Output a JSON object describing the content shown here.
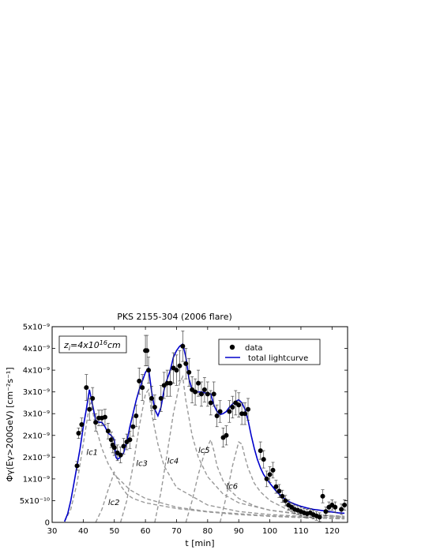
{
  "chart_data": {
    "type": "line",
    "title": "PKS 2155-304  (2006 flare)",
    "xlabel": "t [min]",
    "ylabel": "Φγ(Eγ>200GeV) [cm⁻²s⁻¹]",
    "xlim": [
      30,
      125
    ],
    "ylim": [
      0,
      4.5e-09
    ],
    "xticks": [
      30,
      40,
      50,
      60,
      70,
      80,
      90,
      100,
      110,
      120
    ],
    "yticks": [
      {
        "value": 0,
        "label": "0"
      },
      {
        "value": 5e-10,
        "label": "5x10⁻¹⁰"
      },
      {
        "value": 1e-09,
        "label": "1x10⁻⁹"
      },
      {
        "value": 1.5e-09,
        "label": "2x10⁻⁹"
      },
      {
        "value": 2e-09,
        "label": "2x10⁻⁹"
      },
      {
        "value": 2.5e-09,
        "label": "3x10⁻⁹"
      },
      {
        "value": 3e-09,
        "label": "3x10⁻⁹"
      },
      {
        "value": 3.5e-09,
        "label": "4x10⁻⁹"
      },
      {
        "value": 4e-09,
        "label": "4x10⁻⁹"
      },
      {
        "value": 4.5e-09,
        "label": "5x10⁻⁹"
      }
    ],
    "annotation": "z",
    "annotation_sub": "i",
    "annotation_mid": "=4x10",
    "annotation_sup": "16",
    "annotation_end": "cm",
    "legend": {
      "placement": "top-right",
      "entries": [
        "data",
        "total lightcurve"
      ]
    },
    "colors": {
      "data": "#000000",
      "total": "#0000cc",
      "components": "#999999"
    },
    "series": [
      {
        "name": "data",
        "style": "points-with-errorbars",
        "x": [
          38.0,
          38.5,
          39.5,
          41.0,
          42.0,
          43.0,
          44.0,
          45.0,
          46.0,
          47.0,
          48.0,
          49.0,
          49.5,
          50.0,
          51.0,
          52.0,
          53.0,
          54.0,
          55.0,
          56.0,
          57.0,
          58.0,
          59.0,
          60.0,
          60.5,
          61.0,
          62.0,
          63.0,
          65.0,
          66.0,
          67.0,
          68.0,
          69.0,
          70.0,
          71.0,
          72.0,
          73.0,
          74.0,
          75.0,
          76.0,
          77.0,
          78.0,
          79.0,
          80.0,
          81.0,
          82.0,
          83.0,
          84.0,
          85.0,
          86.0,
          87.0,
          88.0,
          89.0,
          90.0,
          91.0,
          92.0,
          93.0,
          97.0,
          98.0,
          99.0,
          100.0,
          101.0,
          102.0,
          103.0,
          104.0,
          105.0,
          106.0,
          107.0,
          108.0,
          109.0,
          110.0,
          111.0,
          112.0,
          113.0,
          114.0,
          115.0,
          116.0,
          117.0,
          118.0,
          119.0,
          120.0,
          121.0,
          123.0,
          124.0
        ],
        "y": [
          1.3e-09,
          2.05e-09,
          2.25e-09,
          3.1e-09,
          2.6e-09,
          2.85e-09,
          2.3e-09,
          2.4e-09,
          2.4e-09,
          2.42e-09,
          2.1e-09,
          1.9e-09,
          1.78e-09,
          1.72e-09,
          1.6e-09,
          1.55e-09,
          1.75e-09,
          1.85e-09,
          1.9e-09,
          2.2e-09,
          2.45e-09,
          3.25e-09,
          3.1e-09,
          3.95e-09,
          3.95e-09,
          3.5e-09,
          2.85e-09,
          2.65e-09,
          2.85e-09,
          3.15e-09,
          3.2e-09,
          3.2e-09,
          3.55e-09,
          3.5e-09,
          3.6e-09,
          4.05e-09,
          3.65e-09,
          3.45e-09,
          3.05e-09,
          3e-09,
          3.2e-09,
          2.95e-09,
          3.05e-09,
          2.95e-09,
          2.75e-09,
          2.95e-09,
          2.45e-09,
          2.55e-09,
          1.95e-09,
          2e-09,
          2.55e-09,
          2.65e-09,
          2.75e-09,
          2.7e-09,
          2.5e-09,
          2.5e-09,
          2.6e-09,
          1.65e-09,
          1.45e-09,
          1e-09,
          1.1e-09,
          1.2e-09,
          8.2e-10,
          7.2e-10,
          6e-10,
          5e-10,
          4e-10,
          3.5e-10,
          3e-10,
          2.8e-10,
          2.5e-10,
          2.2e-10,
          2e-10,
          2.2e-10,
          1.8e-10,
          1.5e-10,
          1.2e-10,
          6e-10,
          2.5e-10,
          3.5e-10,
          4e-10,
          3.5e-10,
          3e-10,
          4e-10
        ],
        "yerr": [
          1e-10,
          1.2e-10,
          1.5e-10,
          3e-10,
          2.5e-10,
          2.5e-10,
          2e-10,
          1.8e-10,
          1.8e-10,
          1.8e-10,
          1.8e-10,
          1.8e-10,
          1.8e-10,
          1.8e-10,
          1.8e-10,
          1.8e-10,
          1.8e-10,
          1.8e-10,
          2e-10,
          2.2e-10,
          2.5e-10,
          3e-10,
          3e-10,
          3.5e-10,
          3.5e-10,
          3e-10,
          2.8e-10,
          2.8e-10,
          3e-10,
          3e-10,
          3e-10,
          3e-10,
          3.5e-10,
          3.5e-10,
          3.5e-10,
          3.5e-10,
          3.5e-10,
          3.2e-10,
          3e-10,
          3e-10,
          3e-10,
          2.8e-10,
          2.8e-10,
          2.8e-10,
          2.8e-10,
          2.8e-10,
          2.5e-10,
          2.5e-10,
          2.2e-10,
          2.2e-10,
          2.5e-10,
          2.5e-10,
          2.8e-10,
          2.8e-10,
          2.5e-10,
          2.5e-10,
          2.5e-10,
          2e-10,
          2e-10,
          1.8e-10,
          1.8e-10,
          1.8e-10,
          1.5e-10,
          1.5e-10,
          1.4e-10,
          1.2e-10,
          1.2e-10,
          1e-10,
          1e-10,
          1e-10,
          1e-10,
          1e-10,
          1e-10,
          1e-10,
          1e-10,
          1e-10,
          1e-10,
          1.5e-10,
          1e-10,
          1.2e-10,
          1.2e-10,
          1.2e-10,
          1.2e-10,
          1.2e-10
        ]
      },
      {
        "name": "total lightcurve",
        "style": "solid",
        "x": [
          34,
          35,
          36,
          37,
          38,
          39,
          40,
          41,
          42,
          43,
          44,
          45,
          46,
          47,
          48,
          49,
          50,
          50.5,
          51,
          52,
          53,
          54,
          55,
          56,
          57,
          58,
          59,
          60,
          61,
          62,
          63,
          64,
          65,
          66,
          67,
          68,
          69,
          70,
          71,
          72,
          73,
          74,
          75,
          76,
          77,
          78,
          79,
          80,
          81,
          82,
          83,
          84,
          85,
          86,
          87,
          88,
          89,
          90,
          91,
          92,
          93,
          94,
          95,
          96,
          97,
          98,
          99,
          100,
          102,
          104,
          106,
          108,
          110,
          112,
          114,
          116,
          118,
          120,
          122,
          124
        ],
        "y": [
          2e-11,
          2e-10,
          5e-10,
          9e-10,
          1.3e-09,
          1.7e-09,
          2.2e-09,
          2.6e-09,
          3.05e-09,
          2.7e-09,
          2.35e-09,
          2.3e-09,
          2.3e-09,
          2.2e-09,
          2.05e-09,
          2e-09,
          1.9e-09,
          1.5e-09,
          1.45e-09,
          1.5e-09,
          1.6e-09,
          1.85e-09,
          2.2e-09,
          2.5e-09,
          2.8e-09,
          3.05e-09,
          3.25e-09,
          3.45e-09,
          3.55e-09,
          3e-09,
          2.6e-09,
          2.45e-09,
          2.65e-09,
          3.05e-09,
          3.3e-09,
          3.5e-09,
          3.8e-09,
          3.95e-09,
          4.05e-09,
          4.1e-09,
          3.8e-09,
          3.3e-09,
          3.05e-09,
          3e-09,
          3e-09,
          3e-09,
          2.98e-09,
          2.97e-09,
          2.95e-09,
          2.7e-09,
          2.55e-09,
          2.48e-09,
          2.5e-09,
          2.55e-09,
          2.65e-09,
          2.72e-09,
          2.78e-09,
          2.82e-09,
          2.75e-09,
          2.6e-09,
          2.35e-09,
          2e-09,
          1.7e-09,
          1.45e-09,
          1.25e-09,
          1.1e-09,
          1e-09,
          9e-10,
          7.2e-10,
          5.8e-10,
          4.8e-10,
          4.2e-10,
          3.7e-10,
          3.3e-10,
          3e-10,
          2.8e-10,
          2.6e-10,
          2.4e-10,
          2.2e-10,
          2.1e-10
        ]
      },
      {
        "name": "lc1",
        "style": "dashed",
        "x": [
          34,
          36,
          38,
          40,
          42,
          42.5,
          44,
          46,
          48,
          50,
          55,
          60,
          70,
          80,
          90,
          100,
          110,
          120,
          124
        ],
        "y": [
          2e-11,
          3e-10,
          9e-10,
          1.8e-09,
          2.7e-09,
          2.75e-09,
          2.2e-09,
          1.7e-09,
          1.35e-09,
          1.1e-09,
          7.5e-10,
          5.5e-10,
          3.5e-10,
          2.5e-10,
          2e-10,
          1.5e-10,
          1.2e-10,
          1e-10,
          9e-11
        ]
      },
      {
        "name": "lc2",
        "style": "dashed",
        "x": [
          44,
          46,
          48,
          50,
          52,
          54,
          56,
          60,
          70,
          80,
          90,
          100,
          110,
          124
        ],
        "y": [
          0.0,
          3e-10,
          7.5e-10,
          1.15e-09,
          8.5e-10,
          6.5e-10,
          5.5e-10,
          4.5e-10,
          3.2e-10,
          2.4e-10,
          1.8e-10,
          1.4e-10,
          1.1e-10,
          8e-11
        ]
      },
      {
        "name": "lc3",
        "style": "dashed",
        "x": [
          52,
          54,
          56,
          58,
          60,
          61,
          62,
          64,
          66,
          70,
          80,
          90,
          100,
          110,
          124
        ],
        "y": [
          0.0,
          5e-10,
          1.3e-09,
          2.2e-09,
          2.95e-09,
          3.05e-09,
          2.5e-09,
          1.8e-09,
          1.3e-09,
          8e-10,
          4e-10,
          2.5e-10,
          1.8e-10,
          1.4e-10,
          1e-10
        ]
      },
      {
        "name": "lc4",
        "style": "dashed",
        "x": [
          63,
          65,
          67,
          69,
          71,
          72,
          73,
          75,
          77,
          80,
          85,
          90,
          100,
          110,
          124
        ],
        "y": [
          0.0,
          7e-10,
          1.6e-09,
          2.5e-09,
          3.2e-09,
          3.35e-09,
          2.8e-09,
          2e-09,
          1.5e-09,
          1.05e-09,
          6.5e-10,
          4.5e-10,
          2.8e-10,
          2e-10,
          1.4e-10
        ]
      },
      {
        "name": "lc5",
        "style": "dashed",
        "x": [
          73,
          75,
          77,
          79,
          81,
          82,
          83,
          85,
          87,
          90,
          95,
          100,
          110,
          124
        ],
        "y": [
          0.0,
          5e-10,
          1.1e-09,
          1.6e-09,
          1.9e-09,
          1.65e-09,
          1.3e-09,
          9.5e-10,
          7.5e-10,
          5.5e-10,
          3.8e-10,
          2.8e-10,
          1.8e-10,
          1.2e-10
        ]
      },
      {
        "name": "lc6",
        "style": "dashed",
        "x": [
          84,
          86,
          88,
          90,
          91,
          92,
          93,
          95,
          97,
          100,
          105,
          110,
          124
        ],
        "y": [
          0.0,
          6e-10,
          1.3e-09,
          1.85e-09,
          1.8e-09,
          1.5e-09,
          1.25e-09,
          9e-10,
          7e-10,
          5e-10,
          3.2e-10,
          2.2e-10,
          1.2e-10
        ]
      }
    ],
    "component_labels": [
      {
        "text": "lc1",
        "x": 41,
        "y": 1.55e-09
      },
      {
        "text": "lc2",
        "x": 48,
        "y": 4e-10
      },
      {
        "text": "lc3",
        "x": 57,
        "y": 1.3e-09
      },
      {
        "text": "lc4",
        "x": 67,
        "y": 1.35e-09
      },
      {
        "text": "lc5",
        "x": 77,
        "y": 1.6e-09
      },
      {
        "text": "lc6",
        "x": 86,
        "y": 7.7e-10
      }
    ]
  }
}
